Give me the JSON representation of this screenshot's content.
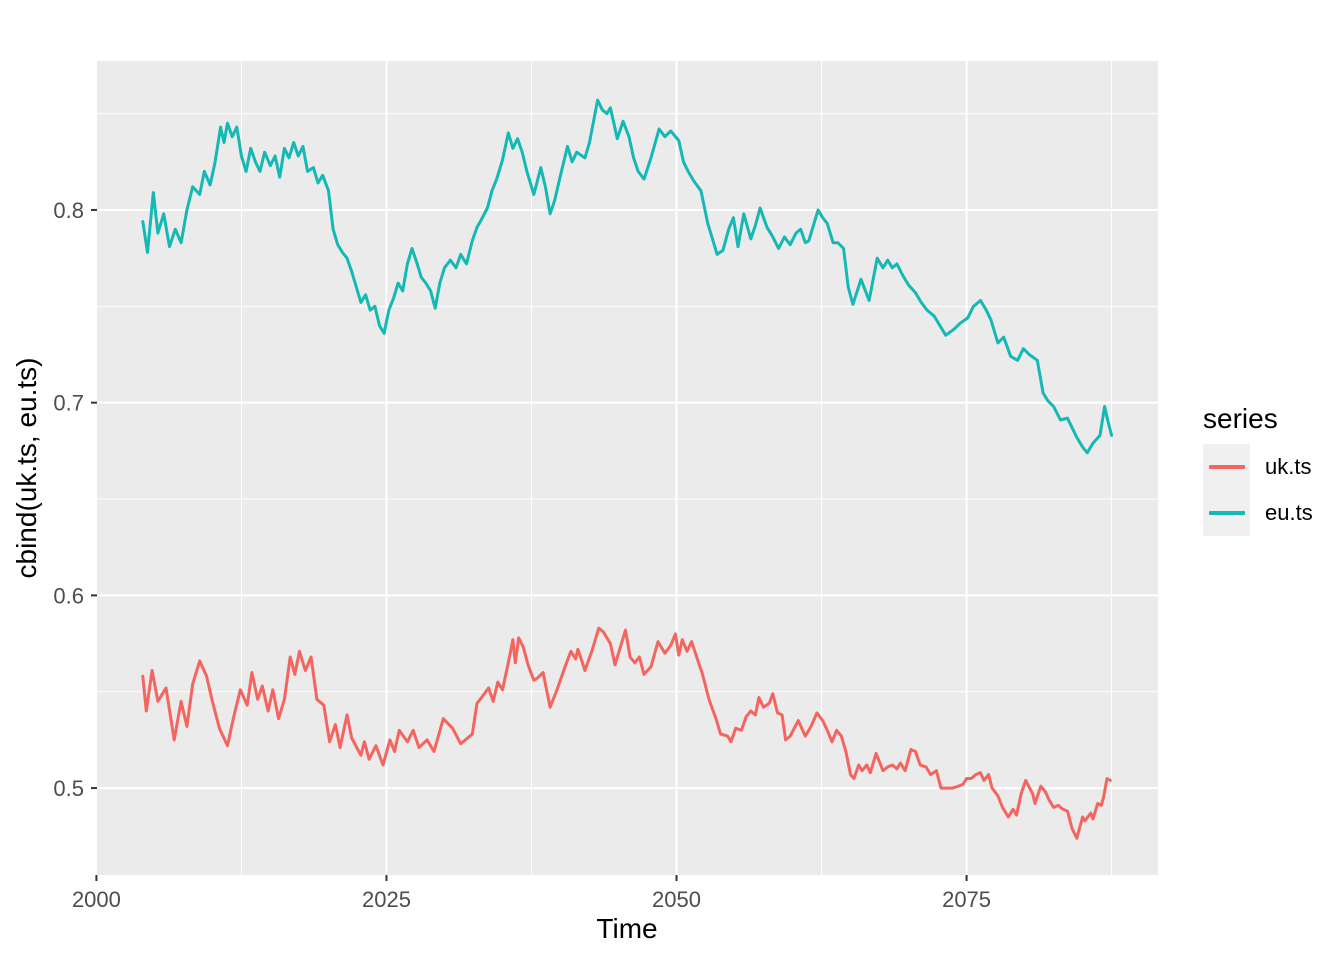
{
  "chart_data": {
    "type": "line",
    "title": "",
    "xlabel": "Time",
    "ylabel": "cbind(uk.ts, eu.ts)",
    "xlim": [
      2000.05,
      2091.5
    ],
    "ylim": [
      0.4549,
      0.8773
    ],
    "grid": "on",
    "legend_position": "right",
    "x_major_ticks": [
      2000,
      2025,
      2050,
      2075
    ],
    "x_minor_ticks": [
      2012.5,
      2037.5,
      2062.5,
      2087.5
    ],
    "x_tick_labels": [
      "2000",
      "2025",
      "2050",
      "2075"
    ],
    "y_major_ticks": [
      0.5,
      0.6,
      0.7,
      0.8
    ],
    "y_minor_ticks": [
      0.55,
      0.65,
      0.75,
      0.85
    ],
    "y_tick_labels": [
      "0.5",
      "0.6",
      "0.7",
      "0.8"
    ],
    "colors": {
      "panel_bg": "#EBEBEB",
      "grid": "#FFFFFF",
      "tick": "#333333",
      "tick_label": "#4D4D4D",
      "legend_key_bg": "#F0F0F0"
    },
    "legend": {
      "title": "series"
    },
    "series": [
      {
        "name": "uk.ts",
        "color": "#F5655F",
        "x": [
          2004.0,
          2004.3,
          2004.8,
          2005.3,
          2006.0,
          2006.7,
          2007.3,
          2007.8,
          2008.3,
          2008.9,
          2009.5,
          2010.0,
          2010.6,
          2011.3,
          2011.8,
          2012.4,
          2013.0,
          2013.4,
          2013.9,
          2014.3,
          2014.8,
          2015.2,
          2015.7,
          2016.2,
          2016.7,
          2017.1,
          2017.5,
          2018.0,
          2018.5,
          2019.0,
          2019.6,
          2020.1,
          2020.6,
          2021.0,
          2021.6,
          2022.0,
          2022.8,
          2023.1,
          2023.5,
          2024.1,
          2024.7,
          2025.3,
          2025.7,
          2026.1,
          2026.8,
          2027.3,
          2027.8,
          2028.5,
          2029.1,
          2029.9,
          2030.7,
          2031.4,
          2031.8,
          2032.4,
          2032.8,
          2033.2,
          2033.8,
          2034.2,
          2034.6,
          2035.0,
          2035.5,
          2035.9,
          2036.1,
          2036.4,
          2036.8,
          2037.2,
          2037.7,
          2038.0,
          2038.5,
          2039.1,
          2039.7,
          2040.4,
          2040.9,
          2041.3,
          2041.5,
          2041.9,
          2042.1,
          2042.7,
          2043.3,
          2043.7,
          2044.3,
          2044.7,
          2045.1,
          2045.6,
          2046.0,
          2046.4,
          2046.8,
          2047.2,
          2047.8,
          2048.4,
          2049.0,
          2049.5,
          2049.9,
          2050.2,
          2050.5,
          2050.9,
          2051.3,
          2051.9,
          2052.2,
          2052.8,
          2053.4,
          2053.8,
          2054.4,
          2054.7,
          2055.1,
          2055.6,
          2056.0,
          2056.4,
          2056.8,
          2057.1,
          2057.5,
          2058.0,
          2058.3,
          2058.7,
          2059.1,
          2059.4,
          2059.8,
          2060.5,
          2061.1,
          2061.6,
          2062.1,
          2062.6,
          2063.0,
          2063.4,
          2063.8,
          2064.2,
          2064.6,
          2065.0,
          2065.3,
          2065.7,
          2066.0,
          2066.4,
          2066.7,
          2067.2,
          2067.8,
          2068.2,
          2068.6,
          2069.0,
          2069.3,
          2069.7,
          2070.2,
          2070.6,
          2071.0,
          2071.5,
          2071.9,
          2072.4,
          2072.8,
          2073.3,
          2073.8,
          2074.3,
          2074.7,
          2075.0,
          2075.4,
          2075.8,
          2076.2,
          2076.5,
          2076.9,
          2077.2,
          2077.7,
          2078.1,
          2078.6,
          2079.0,
          2079.3,
          2079.7,
          2080.1,
          2080.7,
          2080.9,
          2081.4,
          2081.8,
          2082.1,
          2082.5,
          2082.9,
          2083.3,
          2083.7,
          2084.1,
          2084.5,
          2085.0,
          2085.2,
          2085.7,
          2085.9,
          2086.3,
          2086.6,
          2086.8,
          2087.1,
          2087.4
        ],
        "values": [
          0.558,
          0.54,
          0.561,
          0.545,
          0.552,
          0.525,
          0.545,
          0.532,
          0.554,
          0.566,
          0.558,
          0.545,
          0.531,
          0.522,
          0.536,
          0.551,
          0.543,
          0.56,
          0.546,
          0.553,
          0.54,
          0.551,
          0.536,
          0.546,
          0.568,
          0.559,
          0.571,
          0.561,
          0.568,
          0.546,
          0.543,
          0.524,
          0.533,
          0.521,
          0.538,
          0.526,
          0.517,
          0.524,
          0.515,
          0.522,
          0.512,
          0.525,
          0.519,
          0.53,
          0.524,
          0.53,
          0.521,
          0.525,
          0.519,
          0.536,
          0.531,
          0.523,
          0.525,
          0.528,
          0.544,
          0.547,
          0.552,
          0.545,
          0.555,
          0.551,
          0.565,
          0.577,
          0.565,
          0.578,
          0.573,
          0.564,
          0.556,
          0.557,
          0.56,
          0.542,
          0.551,
          0.563,
          0.571,
          0.567,
          0.572,
          0.565,
          0.561,
          0.571,
          0.583,
          0.581,
          0.575,
          0.564,
          0.572,
          0.582,
          0.568,
          0.565,
          0.568,
          0.559,
          0.563,
          0.576,
          0.57,
          0.574,
          0.58,
          0.569,
          0.577,
          0.571,
          0.576,
          0.565,
          0.56,
          0.546,
          0.536,
          0.528,
          0.527,
          0.524,
          0.531,
          0.53,
          0.537,
          0.54,
          0.538,
          0.547,
          0.542,
          0.544,
          0.549,
          0.539,
          0.538,
          0.525,
          0.527,
          0.535,
          0.527,
          0.532,
          0.539,
          0.535,
          0.53,
          0.524,
          0.53,
          0.527,
          0.519,
          0.507,
          0.505,
          0.512,
          0.509,
          0.512,
          0.508,
          0.518,
          0.509,
          0.511,
          0.512,
          0.51,
          0.513,
          0.509,
          0.52,
          0.519,
          0.512,
          0.511,
          0.507,
          0.509,
          0.5,
          0.5,
          0.5,
          0.501,
          0.502,
          0.505,
          0.505,
          0.507,
          0.508,
          0.504,
          0.507,
          0.5,
          0.496,
          0.49,
          0.485,
          0.489,
          0.486,
          0.497,
          0.504,
          0.497,
          0.492,
          0.501,
          0.498,
          0.494,
          0.49,
          0.491,
          0.489,
          0.488,
          0.479,
          0.474,
          0.485,
          0.483,
          0.487,
          0.484,
          0.492,
          0.491,
          0.495,
          0.505,
          0.504
        ]
      },
      {
        "name": "eu.ts",
        "color": "#14B8B4",
        "x": [
          2004.0,
          2004.4,
          2004.9,
          2005.3,
          2005.8,
          2006.3,
          2006.8,
          2007.3,
          2007.8,
          2008.3,
          2008.9,
          2009.3,
          2009.8,
          2010.2,
          2010.7,
          2011.0,
          2011.3,
          2011.7,
          2012.1,
          2012.5,
          2012.9,
          2013.3,
          2013.7,
          2014.1,
          2014.5,
          2015.0,
          2015.4,
          2015.8,
          2016.2,
          2016.6,
          2017.0,
          2017.4,
          2017.8,
          2018.2,
          2018.7,
          2019.1,
          2019.5,
          2020.0,
          2020.4,
          2020.8,
          2021.2,
          2021.6,
          2022.0,
          2022.4,
          2022.8,
          2023.2,
          2023.6,
          2024.0,
          2024.4,
          2024.8,
          2025.2,
          2025.6,
          2026.0,
          2026.4,
          2026.8,
          2027.2,
          2027.6,
          2028.0,
          2028.4,
          2028.8,
          2029.2,
          2029.6,
          2030.0,
          2030.5,
          2031.0,
          2031.4,
          2031.9,
          2032.4,
          2032.8,
          2033.1,
          2033.7,
          2034.1,
          2034.5,
          2035.0,
          2035.5,
          2035.9,
          2036.3,
          2036.7,
          2037.1,
          2037.7,
          2038.3,
          2038.7,
          2039.1,
          2039.5,
          2040.0,
          2040.6,
          2041.0,
          2041.4,
          2042.1,
          2042.5,
          2043.2,
          2043.6,
          2044.0,
          2044.3,
          2044.9,
          2045.4,
          2045.9,
          2046.3,
          2046.7,
          2047.2,
          2047.8,
          2048.5,
          2049.0,
          2049.5,
          2050.2,
          2050.6,
          2051.0,
          2051.5,
          2052.1,
          2052.7,
          2053.2,
          2053.5,
          2054.0,
          2054.5,
          2054.9,
          2055.3,
          2055.8,
          2056.4,
          2056.8,
          2057.2,
          2057.8,
          2058.3,
          2058.8,
          2059.3,
          2059.8,
          2060.3,
          2060.7,
          2061.1,
          2061.4,
          2061.8,
          2062.2,
          2062.6,
          2063.0,
          2063.5,
          2063.9,
          2064.4,
          2064.8,
          2065.2,
          2065.9,
          2066.6,
          2067.3,
          2067.8,
          2068.2,
          2068.6,
          2069.0,
          2069.5,
          2070.0,
          2070.6,
          2071.1,
          2071.6,
          2072.2,
          2072.7,
          2073.2,
          2073.9,
          2074.4,
          2075.1,
          2075.6,
          2076.2,
          2076.7,
          2077.1,
          2077.7,
          2078.2,
          2078.8,
          2079.4,
          2079.9,
          2080.4,
          2081.1,
          2081.6,
          2082.0,
          2082.5,
          2083.1,
          2083.7,
          2084.1,
          2084.5,
          2085.0,
          2085.4,
          2085.9,
          2086.5,
          2086.9,
          2087.2,
          2087.5
        ],
        "values": [
          0.794,
          0.778,
          0.809,
          0.788,
          0.798,
          0.781,
          0.79,
          0.783,
          0.8,
          0.812,
          0.808,
          0.82,
          0.813,
          0.824,
          0.843,
          0.835,
          0.845,
          0.838,
          0.843,
          0.828,
          0.82,
          0.832,
          0.825,
          0.82,
          0.83,
          0.823,
          0.828,
          0.817,
          0.832,
          0.827,
          0.835,
          0.828,
          0.833,
          0.82,
          0.822,
          0.814,
          0.818,
          0.81,
          0.79,
          0.782,
          0.778,
          0.775,
          0.768,
          0.76,
          0.752,
          0.756,
          0.748,
          0.75,
          0.74,
          0.736,
          0.748,
          0.754,
          0.762,
          0.758,
          0.772,
          0.78,
          0.773,
          0.765,
          0.762,
          0.758,
          0.749,
          0.762,
          0.77,
          0.774,
          0.77,
          0.777,
          0.772,
          0.784,
          0.791,
          0.794,
          0.801,
          0.81,
          0.816,
          0.826,
          0.84,
          0.832,
          0.837,
          0.83,
          0.82,
          0.808,
          0.822,
          0.812,
          0.798,
          0.805,
          0.818,
          0.833,
          0.825,
          0.83,
          0.827,
          0.835,
          0.857,
          0.852,
          0.85,
          0.853,
          0.837,
          0.846,
          0.838,
          0.827,
          0.82,
          0.816,
          0.827,
          0.842,
          0.838,
          0.841,
          0.836,
          0.825,
          0.82,
          0.815,
          0.81,
          0.793,
          0.783,
          0.777,
          0.779,
          0.79,
          0.796,
          0.781,
          0.798,
          0.785,
          0.792,
          0.801,
          0.791,
          0.786,
          0.78,
          0.786,
          0.782,
          0.788,
          0.79,
          0.783,
          0.784,
          0.792,
          0.8,
          0.796,
          0.793,
          0.783,
          0.783,
          0.78,
          0.76,
          0.751,
          0.764,
          0.753,
          0.775,
          0.77,
          0.774,
          0.77,
          0.772,
          0.766,
          0.761,
          0.757,
          0.752,
          0.748,
          0.745,
          0.74,
          0.735,
          0.738,
          0.741,
          0.744,
          0.75,
          0.753,
          0.748,
          0.743,
          0.731,
          0.734,
          0.724,
          0.722,
          0.728,
          0.725,
          0.722,
          0.705,
          0.701,
          0.698,
          0.691,
          0.692,
          0.687,
          0.682,
          0.677,
          0.674,
          0.679,
          0.683,
          0.698,
          0.69,
          0.683
        ]
      }
    ]
  }
}
